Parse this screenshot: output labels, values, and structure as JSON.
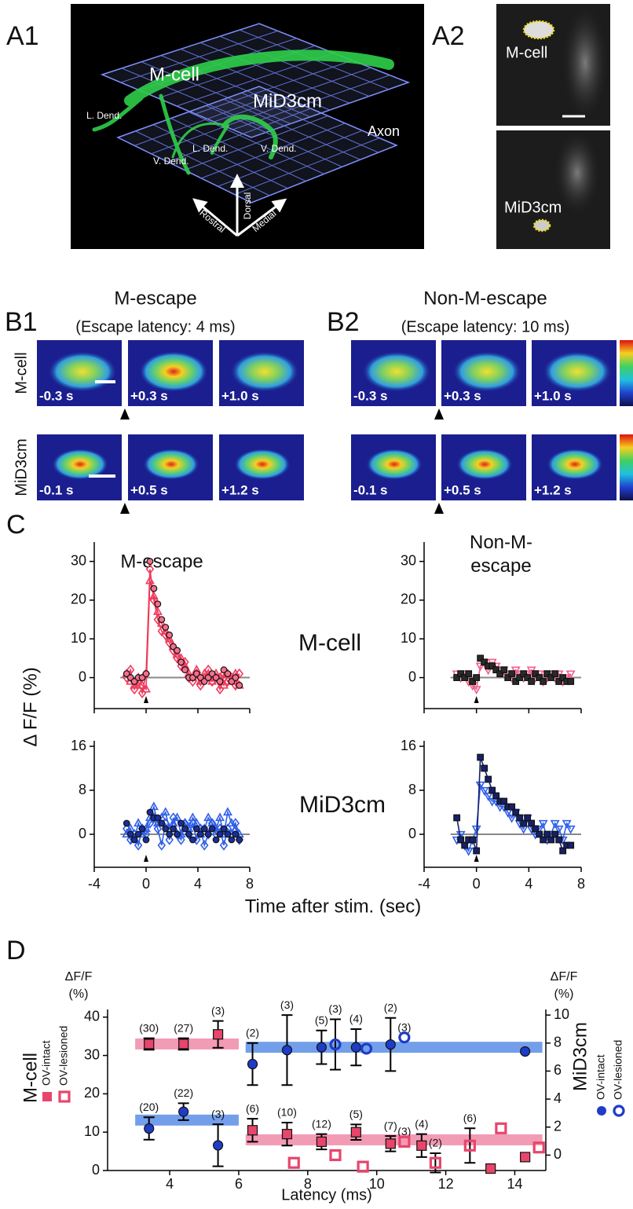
{
  "panel_labels": [
    "A1",
    "A2",
    "B1",
    "B2",
    "C",
    "D"
  ],
  "a1": {
    "labels": [
      "M-cell",
      "MiD3cm",
      "L. Dend.",
      "V. Dend.",
      "L. Dend.",
      "V. Dend.",
      "Axon",
      "Dorsal",
      "Rostral",
      "Medial"
    ]
  },
  "a2": {
    "labels": [
      "M-cell",
      "MiD3cm"
    ]
  },
  "b": {
    "titles": [
      "M-escape",
      "Non-M-escape"
    ],
    "subtitles": [
      "(Escape latency: 4 ms)",
      "(Escape latency: 10 ms)"
    ],
    "row_labels": [
      "M-cell",
      "MiD3cm"
    ],
    "frame_labels": [
      [
        "-0.3 s",
        "+0.3 s",
        "+1.0 s"
      ],
      [
        "-0.1 s",
        "+0.5 s",
        "+1.2 s"
      ]
    ]
  },
  "c": {
    "column_titles": [
      "M-escape",
      "Non-M-escape"
    ],
    "row_labels": [
      "M-cell",
      "MiD3cm"
    ],
    "y_label": "Δ F/F (%)",
    "x_label": "Time after stim. (sec)"
  },
  "chart_data": [
    {
      "type": "line",
      "xlim": [
        -4,
        8
      ],
      "xticks": [
        -4,
        0,
        4,
        8
      ],
      "ylim": [
        -8,
        35
      ],
      "yticks": [
        0,
        10,
        20,
        30
      ],
      "zero_line": true,
      "xtick_labels": false,
      "x": [
        -1.5,
        -1.2,
        -0.9,
        -0.6,
        -0.3,
        0,
        0.3,
        0.6,
        0.9,
        1.2,
        1.5,
        1.8,
        2.1,
        2.4,
        2.7,
        3.0,
        3.3,
        3.6,
        3.9,
        4.2,
        4.5,
        4.8,
        5.1,
        5.4,
        5.7,
        6.0,
        6.3,
        6.6,
        6.9,
        7.2
      ],
      "series": [
        {
          "color": "#ef3b5c",
          "marker": "triangle",
          "filled": false,
          "line": true,
          "values": [
            1,
            -1,
            -2,
            0,
            -2,
            -3,
            25,
            21,
            17,
            14,
            12,
            10,
            8,
            6,
            5,
            3,
            1,
            0,
            2,
            -1,
            1,
            0,
            -1,
            1,
            0,
            -2,
            1,
            -1,
            1,
            -2
          ]
        },
        {
          "color": "#ef3b5c",
          "marker": "diamond",
          "filled": false,
          "line": true,
          "values": [
            0,
            2,
            -3,
            -1,
            -4,
            1,
            28,
            20,
            15,
            12,
            11,
            9,
            7,
            5,
            3,
            4,
            0,
            -1,
            1,
            -2,
            0,
            2,
            -1,
            0,
            -3,
            1,
            -1,
            0,
            -2,
            1
          ]
        },
        {
          "color": "#f2708e",
          "marker": "circle",
          "filled": true,
          "line": false,
          "values": [
            1,
            0,
            -1,
            0,
            0,
            1,
            30,
            23,
            19,
            15,
            13,
            11,
            8,
            7,
            4,
            2,
            0,
            0,
            1,
            0,
            -1,
            0,
            1,
            0,
            -1,
            2,
            1,
            -1,
            0,
            -2
          ]
        }
      ]
    },
    {
      "type": "line",
      "xlim": [
        -4,
        8
      ],
      "xticks": [
        -4,
        0,
        4,
        8
      ],
      "ylim": [
        -8,
        35
      ],
      "yticks": [
        0,
        10,
        20,
        30
      ],
      "zero_line": true,
      "xtick_labels": false,
      "x": [
        -1.5,
        -1.2,
        -0.9,
        -0.6,
        -0.3,
        0,
        0.3,
        0.6,
        0.9,
        1.2,
        1.5,
        1.8,
        2.1,
        2.4,
        2.7,
        3.0,
        3.3,
        3.6,
        3.9,
        4.2,
        4.5,
        4.8,
        5.1,
        5.4,
        5.7,
        6.0,
        6.3,
        6.6,
        6.9,
        7.2
      ],
      "series": [
        {
          "color": "#f0608a",
          "marker": "triangle-down",
          "filled": false,
          "line": true,
          "values": [
            1,
            0,
            1,
            -1,
            -2,
            -3,
            3,
            4,
            2,
            4,
            3,
            1,
            2,
            1,
            0,
            2,
            1,
            0,
            1,
            2,
            0,
            1,
            -1,
            0,
            1,
            0,
            1,
            -1,
            0,
            1
          ]
        },
        {
          "color": "#2a2a2a",
          "marker": "square",
          "filled": true,
          "line": false,
          "values": [
            0,
            1,
            0,
            1,
            -1,
            0,
            5,
            4,
            3,
            3,
            2,
            1,
            2,
            0,
            1,
            -1,
            0,
            1,
            0,
            -1,
            1,
            0,
            -1,
            1,
            0,
            1,
            -1,
            0,
            -1,
            -1
          ]
        }
      ]
    },
    {
      "type": "line",
      "xlim": [
        -4,
        8
      ],
      "xticks": [
        -4,
        0,
        4,
        8
      ],
      "ylim": [
        -6,
        17
      ],
      "yticks": [
        0,
        8,
        16
      ],
      "zero_line": true,
      "xtick_labels": true,
      "x": [
        -1.5,
        -1.2,
        -0.9,
        -0.6,
        -0.3,
        0,
        0.3,
        0.6,
        0.9,
        1.2,
        1.5,
        1.8,
        2.1,
        2.4,
        2.7,
        3.0,
        3.3,
        3.6,
        3.9,
        4.2,
        4.5,
        4.8,
        5.1,
        5.4,
        5.7,
        6.0,
        6.3,
        6.6,
        6.9,
        7.2
      ],
      "series": [
        {
          "color": "#3060e8",
          "marker": "triangle",
          "filled": false,
          "line": true,
          "values": [
            0,
            1,
            -1,
            2,
            0,
            1,
            3,
            5,
            2,
            3,
            4,
            1,
            2,
            3,
            0,
            2,
            1,
            3,
            2,
            0,
            1,
            3,
            2,
            1,
            3,
            0,
            4,
            2,
            1,
            0
          ]
        },
        {
          "color": "#3060e8",
          "marker": "diamond",
          "filled": false,
          "line": true,
          "values": [
            1,
            -1,
            0,
            -2,
            1,
            0,
            2,
            3,
            1,
            -2,
            2,
            -1,
            3,
            0,
            -1,
            2,
            0,
            2,
            -1,
            1,
            -2,
            0,
            2,
            0,
            1,
            -2,
            1,
            0,
            2,
            -1
          ]
        },
        {
          "color": "#1a2e9a",
          "marker": "circle",
          "filled": true,
          "line": false,
          "values": [
            2,
            0,
            -1,
            0,
            1,
            -1,
            4,
            3,
            3,
            2,
            1,
            0,
            1,
            0,
            2,
            1,
            0,
            -1,
            1,
            0,
            1,
            0,
            1,
            -1,
            0,
            1,
            0,
            -1,
            0,
            -1
          ]
        }
      ]
    },
    {
      "type": "line",
      "xlim": [
        -4,
        8
      ],
      "xticks": [
        -4,
        0,
        4,
        8
      ],
      "ylim": [
        -6,
        17
      ],
      "yticks": [
        0,
        8,
        16
      ],
      "zero_line": true,
      "xtick_labels": true,
      "x": [
        -1.5,
        -1.2,
        -0.9,
        -0.6,
        -0.3,
        0,
        0.3,
        0.6,
        0.9,
        1.2,
        1.5,
        1.8,
        2.1,
        2.4,
        2.7,
        3.0,
        3.3,
        3.6,
        3.9,
        4.2,
        4.5,
        4.8,
        5.1,
        5.4,
        5.7,
        6.0,
        6.3,
        6.6,
        6.9,
        7.2
      ],
      "series": [
        {
          "color": "#3060e8",
          "marker": "triangle-down",
          "filled": false,
          "line": true,
          "values": [
            -1,
            0,
            -2,
            -3,
            -1,
            1,
            9,
            8,
            7,
            6,
            6,
            5,
            5,
            4,
            3,
            4,
            2,
            1,
            3,
            1,
            0,
            1,
            2,
            -1,
            0,
            2,
            1,
            -1,
            2,
            1
          ]
        },
        {
          "color": "#16206a",
          "marker": "square",
          "filled": true,
          "line": true,
          "values": [
            3,
            -1,
            -2,
            -1,
            -1,
            -3,
            14,
            12,
            10,
            8,
            7,
            6,
            6,
            5,
            5,
            4,
            3,
            2,
            3,
            2,
            1,
            0,
            -1,
            0,
            -1,
            0,
            -1,
            -3,
            -2,
            -2
          ]
        }
      ]
    },
    {
      "type": "errorbar",
      "x_label": "Latency (ms)",
      "ylabel": "M-cell",
      "y2label": "MiD3cm",
      "unit_label": [
        "ΔF/F",
        "(%)"
      ],
      "xlim": [
        2.2,
        14.9
      ],
      "xticks": [
        4,
        6,
        8,
        10,
        12,
        14
      ],
      "ylim": [
        0,
        42
      ],
      "yticks": [
        0,
        10,
        20,
        30,
        40
      ],
      "y2lim": [
        -1.1,
        10.4
      ],
      "y2ticks": [
        0,
        2,
        4,
        6,
        8,
        10
      ],
      "bands": [
        {
          "axis": "y",
          "color": "#f08aa8",
          "x": [
            3,
            6
          ],
          "y": 33
        },
        {
          "axis": "y",
          "color": "#f08aa8",
          "x": [
            6.2,
            14.8
          ],
          "y": 8
        },
        {
          "axis": "y2",
          "color": "#5b8ee6",
          "x": [
            3,
            6
          ],
          "y": 2.5
        },
        {
          "axis": "y2",
          "color": "#5b8ee6",
          "x": [
            6.2,
            14.8
          ],
          "y": 7.7
        }
      ],
      "series": [
        {
          "name": "OV-intact",
          "axis": "y",
          "color": "#e8456b",
          "marker": "square",
          "filled": true,
          "x": [
            3.4,
            4.4,
            5.4,
            6.4,
            7.4,
            8.4,
            9.4,
            10.4,
            11.3,
            13.3,
            14.3
          ],
          "values": [
            33,
            33,
            35.5,
            10.5,
            9.5,
            7.5,
            10,
            7,
            6.5,
            0.5,
            3.5
          ],
          "errors": [
            1.5,
            1.5,
            3.5,
            3,
            3,
            2,
            2,
            2,
            3,
            null,
            null
          ],
          "n_labels": [
            "(30)",
            "(27)",
            "(3)",
            "(6)",
            "(10)",
            "(12)",
            "(5)",
            "(7)",
            "(4)",
            null,
            null
          ]
        },
        {
          "name": "OV-lesioned",
          "axis": "y",
          "color": "#e8456b",
          "marker": "square",
          "filled": false,
          "x": [
            7.6,
            8.8,
            9.6,
            10.8,
            11.7,
            12.7,
            13.6,
            14.7
          ],
          "values": [
            2,
            4,
            1,
            7.5,
            2,
            6.5,
            11,
            6
          ],
          "errors": [
            null,
            null,
            null,
            null,
            2.5,
            4.5,
            null,
            null
          ],
          "n_labels": [
            null,
            null,
            null,
            "(3)",
            "(2)",
            "(6)",
            null,
            null
          ]
        },
        {
          "name": "OV-intact",
          "axis": "y2",
          "color": "#1e3cc8",
          "marker": "circle",
          "filled": true,
          "x": [
            3.4,
            4.4,
            5.4,
            6.4,
            7.4,
            8.4,
            9.4,
            10.4,
            14.3
          ],
          "values": [
            1.9,
            3.1,
            0.7,
            6.5,
            7.5,
            7.7,
            7.7,
            7.9,
            7.4
          ],
          "errors": [
            0.8,
            0.6,
            1.5,
            1.5,
            2.5,
            1.2,
            1.3,
            1.9,
            null
          ],
          "n_labels": [
            "(20)",
            "(22)",
            "(3)",
            "(2)",
            "(3)",
            "(5)",
            "(4)",
            "(2)",
            null
          ]
        },
        {
          "name": "OV-lesioned",
          "axis": "y2",
          "color": "#1e3cc8",
          "marker": "circle",
          "filled": false,
          "x": [
            8.8,
            9.7,
            10.8
          ],
          "values": [
            7.9,
            7.6,
            8.4
          ],
          "errors": [
            1.8,
            null,
            null
          ],
          "n_labels": [
            "(3)",
            null,
            "(3)"
          ]
        }
      ]
    }
  ]
}
